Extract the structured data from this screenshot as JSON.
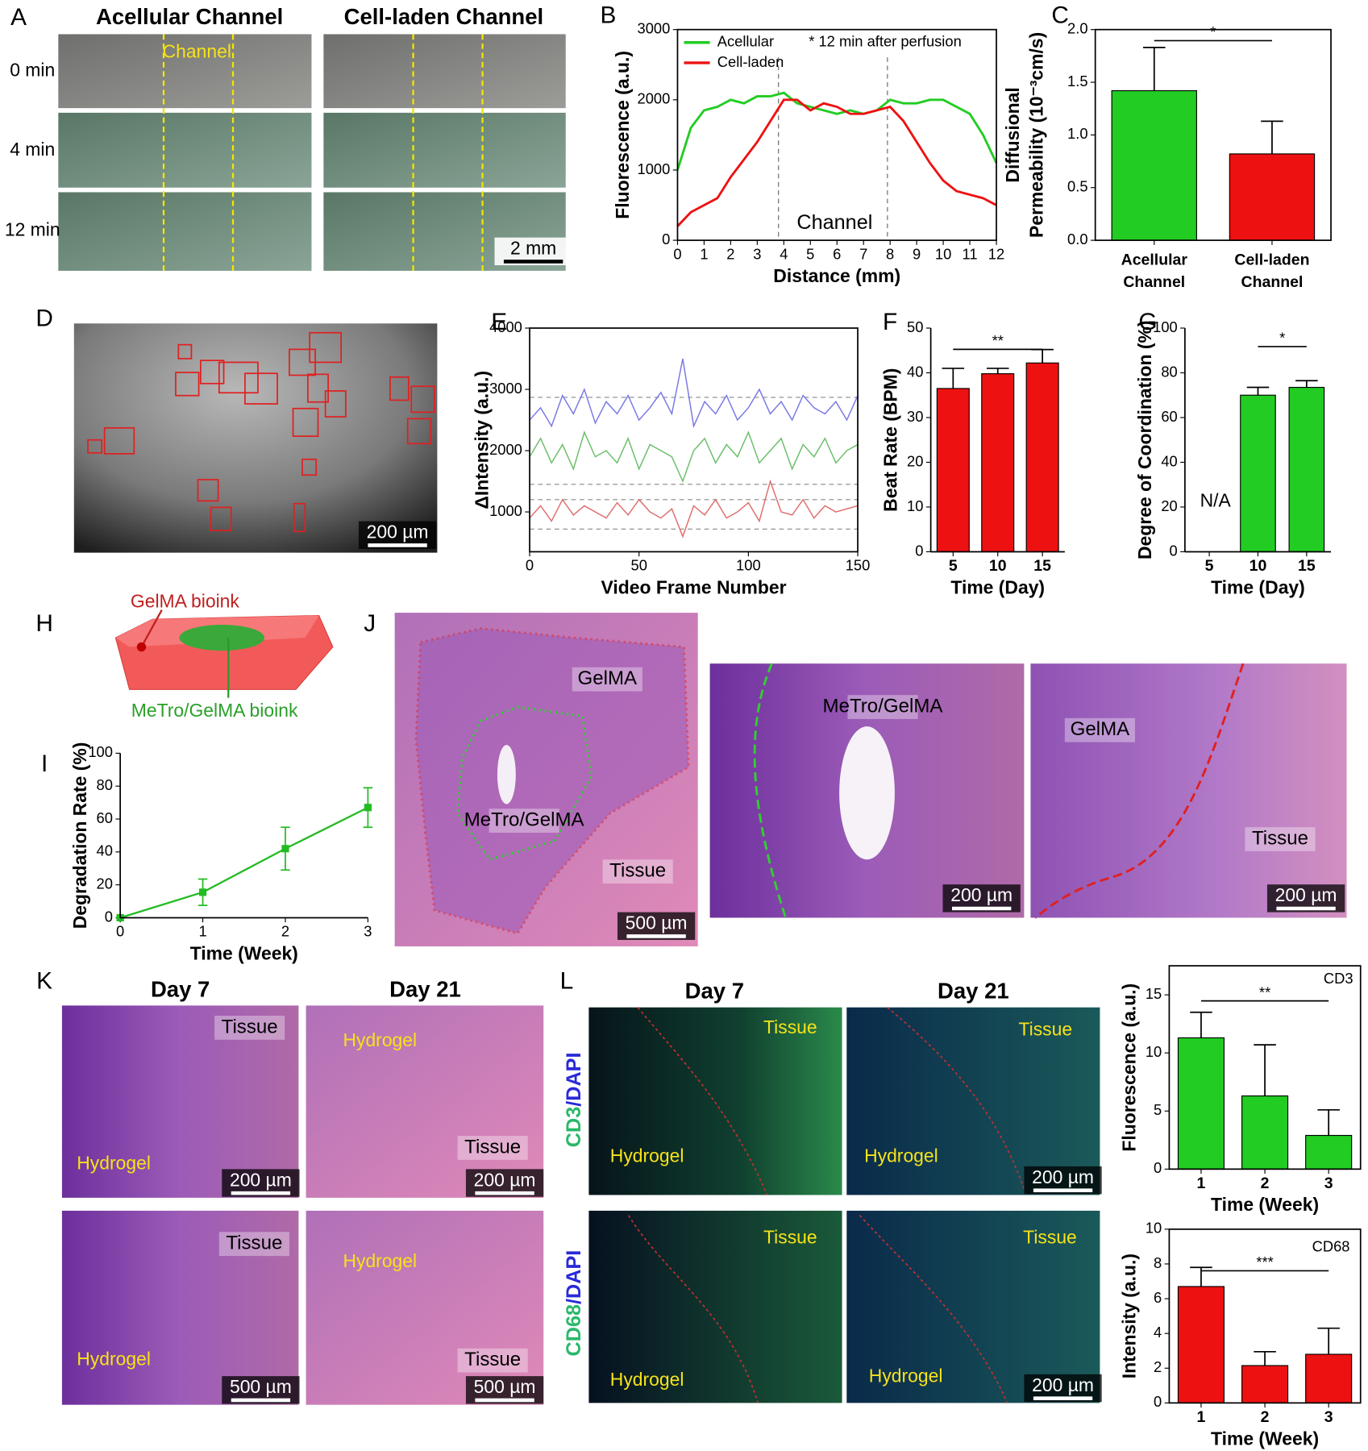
{
  "figure": {
    "panel_letters": [
      "A",
      "B",
      "C",
      "D",
      "E",
      "F",
      "G",
      "H",
      "I",
      "J",
      "K",
      "L"
    ],
    "image_texts": [
      "Acellular Channel",
      "Cell-laden Channel",
      "0 min",
      "4 min",
      "12 min",
      "Channel",
      "2 mm",
      "200 µm",
      "GelMA bioink",
      "MeTro/GelMA bioink",
      "GelMA",
      "MeTro/GelMA",
      "Tissue",
      "500 µm",
      "MeTro/GelMA",
      "200 µm",
      "GelMA",
      "Tissue",
      "200 µm",
      "Day 7",
      "Day 21",
      "Tissue",
      "Hydrogel",
      "200 µm",
      "Hydrogel",
      "Tissue",
      "200 µm",
      "Tissue",
      "Hydrogel",
      "500 µm",
      "Hydrogel",
      "Tissue",
      "500 µm",
      "Day 7",
      "Day 21",
      "Tissue",
      "Hydrogel",
      "Tissue",
      "Hydrogel",
      "200 µm",
      "Tissue",
      "Hydrogel",
      "Tissue",
      "Hydrogel",
      "200 µm"
    ],
    "stains": [
      [
        "CD3",
        "/DAPI"
      ],
      [
        "CD68",
        "/DAPI"
      ]
    ]
  },
  "chart_data": [
    {
      "type": "line",
      "xlabel": "Distance (mm)",
      "ylabel": "Fluorescence (a.u.)",
      "x": [
        0,
        0.5,
        1,
        1.5,
        2,
        2.5,
        3,
        3.5,
        4,
        4.5,
        5,
        5.5,
        6,
        6.5,
        7,
        7.5,
        8,
        8.5,
        9,
        9.5,
        10,
        10.5,
        11,
        11.5,
        12
      ],
      "series": [
        {
          "name": "Acellular",
          "color": "#22cc22",
          "values": [
            1000,
            1600,
            1850,
            1900,
            2000,
            1950,
            2050,
            2050,
            2100,
            1950,
            1900,
            1850,
            1800,
            1850,
            1800,
            1850,
            2000,
            1950,
            1950,
            2000,
            2000,
            1900,
            1800,
            1500,
            1100
          ]
        },
        {
          "name": "Cell-laden",
          "color": "#ee1111",
          "values": [
            200,
            400,
            500,
            600,
            900,
            1150,
            1400,
            1700,
            2000,
            2000,
            1850,
            1950,
            1900,
            1800,
            1800,
            1850,
            1900,
            1700,
            1400,
            1100,
            850,
            700,
            650,
            600,
            500
          ]
        }
      ],
      "xlim": [
        0,
        12
      ],
      "xticks": [
        0,
        1,
        2,
        3,
        4,
        5,
        6,
        7,
        8,
        9,
        10,
        11,
        12
      ],
      "ylim": [
        0,
        3000
      ],
      "yticks": [
        0,
        1000,
        2000,
        3000
      ],
      "vlines": [
        3.8,
        7.9
      ],
      "annotations": [
        "* 12 min after perfusion",
        "Channel"
      ]
    },
    {
      "type": "bar",
      "ylabel": [
        "Diffusional",
        "Permeability (10⁻³cm/s)"
      ],
      "categories": [
        "Acellular Channel",
        "Cell-laden Channel"
      ],
      "values": [
        1.42,
        0.82
      ],
      "errors": [
        0.41,
        0.31
      ],
      "colors": [
        "#22cc22",
        "#ee1111"
      ],
      "ylim": [
        0,
        2.0
      ],
      "yticks": [
        {
          "value": 0,
          "label": "0.0"
        },
        {
          "value": 0.5,
          "label": "0.5"
        },
        {
          "value": 1,
          "label": "1.0"
        },
        {
          "value": 1.5,
          "label": "1.5"
        },
        {
          "value": 2,
          "label": "2.0"
        }
      ],
      "significance": "*"
    },
    {
      "type": "line",
      "xlabel": "Video Frame Number",
      "ylabel": "ΔIntensity (a.u.)",
      "x": [
        0,
        5,
        10,
        15,
        20,
        25,
        30,
        35,
        40,
        45,
        50,
        55,
        60,
        65,
        70,
        75,
        80,
        85,
        90,
        95,
        100,
        105,
        110,
        115,
        120,
        125,
        130,
        135,
        140,
        145,
        150
      ],
      "series": [
        {
          "color": "#7a7ae6",
          "values": [
            2500,
            2700,
            2400,
            2900,
            2600,
            3000,
            2450,
            2800,
            2600,
            2900,
            2500,
            2700,
            2950,
            2600,
            3500,
            2400,
            2800,
            2600,
            2900,
            2500,
            2700,
            3000,
            2600,
            2800,
            2500,
            2900,
            2700,
            2600,
            2800,
            2500,
            2900
          ]
        },
        {
          "color": "#6cbf6c",
          "values": [
            1900,
            2200,
            1800,
            2100,
            1700,
            2300,
            1900,
            2000,
            1800,
            2200,
            1700,
            2100,
            2000,
            1900,
            1500,
            2000,
            2200,
            1800,
            2100,
            1900,
            2300,
            1800,
            2000,
            2200,
            1700,
            2100,
            1900,
            2200,
            1800,
            2000,
            2100
          ]
        },
        {
          "color": "#e07070",
          "values": [
            900,
            1100,
            850,
            1200,
            950,
            1100,
            1000,
            900,
            1150,
            950,
            1200,
            1000,
            900,
            1050,
            600,
            1100,
            950,
            1200,
            900,
            1000,
            1150,
            850,
            1500,
            1000,
            950,
            1200,
            900,
            1100,
            1000,
            1050,
            1100
          ]
        }
      ],
      "xlim": [
        0,
        150
      ],
      "xticks": [
        0,
        50,
        100,
        150
      ],
      "ylim": [
        350,
        4000
      ],
      "yticks": [
        1000,
        2000,
        3000,
        4000
      ],
      "hlines": [
        2870,
        1450,
        1200,
        720
      ]
    },
    {
      "type": "bar",
      "xlabel": "Time (Day)",
      "ylabel": "Beat Rate (BPM)",
      "categories": [
        "5",
        "10",
        "15"
      ],
      "values": [
        36.5,
        39.8,
        42.2
      ],
      "errors": [
        4.5,
        1.2,
        3.0
      ],
      "color": "#ee1111",
      "ylim": [
        0,
        50
      ],
      "yticks": [
        0,
        10,
        20,
        30,
        40,
        50
      ],
      "significance": "**"
    },
    {
      "type": "bar",
      "xlabel": "Time (Day)",
      "ylabel": "Degree of Coordination (%)",
      "categories": [
        "5",
        "10",
        "15"
      ],
      "values": [
        null,
        70,
        73.5
      ],
      "errors": [
        null,
        3.5,
        3
      ],
      "color": "#22cc22",
      "ylim": [
        0,
        100
      ],
      "yticks": [
        0,
        20,
        40,
        60,
        80,
        100
      ],
      "significance": "*",
      "annotations": [
        "N/A"
      ]
    },
    {
      "type": "line",
      "xlabel": "Time (Week)",
      "ylabel": "Degradation Rate (%)",
      "x": [
        0,
        1,
        2,
        3
      ],
      "values": [
        0,
        15.5,
        42,
        67
      ],
      "errors": [
        0,
        8,
        13,
        12
      ],
      "color": "#22bb22",
      "xlim": [
        0,
        3
      ],
      "xticks": [
        0,
        1,
        2,
        3
      ],
      "ylim": [
        0,
        100
      ],
      "yticks": [
        0,
        20,
        40,
        60,
        80,
        100
      ]
    },
    {
      "type": "bar",
      "xlabel": "Time (Week)",
      "ylabel": "Fluorescence (a.u.)",
      "categories": [
        "1",
        "2",
        "3"
      ],
      "values": [
        11.3,
        6.3,
        2.9
      ],
      "errors": [
        2.2,
        4.4,
        2.2
      ],
      "color": "#22cc22",
      "ylim": [
        0,
        17.5
      ],
      "yticks": [
        0,
        5,
        10,
        15
      ],
      "significance": "**",
      "annotations": [
        "CD3"
      ]
    },
    {
      "type": "bar",
      "xlabel": "Time (Week)",
      "ylabel": "Intensity (a.u.)",
      "categories": [
        "1",
        "2",
        "3"
      ],
      "values": [
        6.7,
        2.15,
        2.8
      ],
      "errors": [
        1.1,
        0.8,
        1.5
      ],
      "color": "#ee1111",
      "ylim": [
        0,
        10
      ],
      "yticks": [
        0,
        2,
        4,
        6,
        8,
        10
      ],
      "significance": "***",
      "annotations": [
        "CD68"
      ]
    }
  ]
}
